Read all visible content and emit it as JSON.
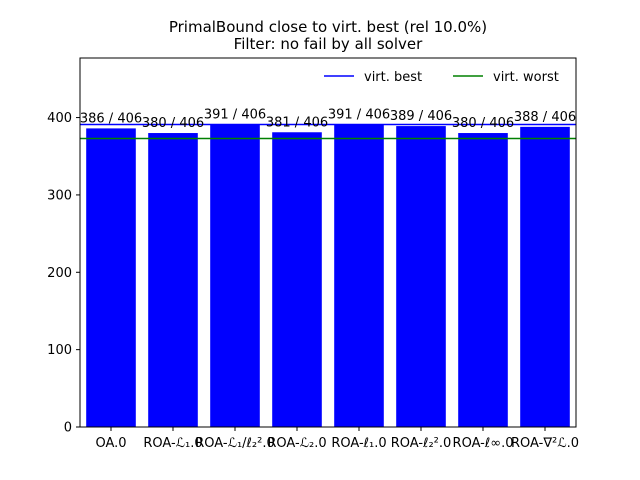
{
  "chart_data": {
    "type": "bar",
    "title": "PrimalBound close to virt. best (rel 10.0%)",
    "subtitle": "Filter: no fail by all solver",
    "categories": [
      "OA.0",
      "ROA-ℒ₁.0",
      "ROA-ℒ₁/ℓ₂².0",
      "ROA-ℒ₂.0",
      "ROA-ℓ₁.0",
      "ROA-ℓ₂².0",
      "ROA-ℓ∞.0",
      "ROA-∇²ℒ.0"
    ],
    "values": [
      386,
      380,
      391,
      381,
      391,
      389,
      380,
      388
    ],
    "bar_labels": [
      "386 / 406",
      "380 / 406",
      "391 / 406",
      "381 / 406",
      "391 / 406",
      "389 / 406",
      "380 / 406",
      "388 / 406"
    ],
    "bar_color": "#0000ff",
    "reference_lines": [
      {
        "name": "virt. best",
        "value": 391,
        "color": "#0000ff"
      },
      {
        "name": "virt. worst",
        "value": 373,
        "color": "#008000"
      }
    ],
    "ylim": [
      0,
      477
    ],
    "yticks": [
      0,
      100,
      200,
      300,
      400
    ],
    "legend_position": "top-right",
    "grid": false
  }
}
